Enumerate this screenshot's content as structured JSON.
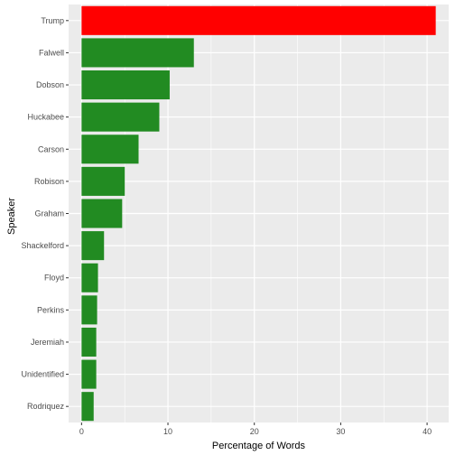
{
  "chart_data": {
    "type": "bar",
    "orientation": "horizontal",
    "xlabel": "Percentage of Words",
    "ylabel": "Speaker",
    "xlim": [
      -1.5,
      42.5
    ],
    "xticks": [
      0,
      10,
      20,
      30,
      40
    ],
    "grid": true,
    "categories": [
      "Trump",
      "Falwell",
      "Dobson",
      "Huckabee",
      "Carson",
      "Robison",
      "Graham",
      "Shackelford",
      "Floyd",
      "Perkins",
      "Jeremiah",
      "Unidentified",
      "Rodriquez"
    ],
    "values": [
      41.0,
      13.0,
      10.2,
      9.0,
      6.6,
      5.0,
      4.7,
      2.6,
      1.9,
      1.8,
      1.7,
      1.7,
      1.4
    ],
    "bar_colors": [
      "#ff0000",
      "#228b22",
      "#228b22",
      "#228b22",
      "#228b22",
      "#228b22",
      "#228b22",
      "#228b22",
      "#228b22",
      "#228b22",
      "#228b22",
      "#228b22",
      "#228b22"
    ],
    "panel_background": "#ebebeb",
    "grid_color": "#ffffff"
  }
}
